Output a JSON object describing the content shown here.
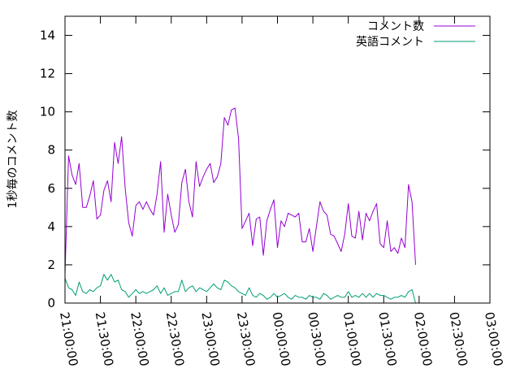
{
  "chart_data": {
    "type": "line",
    "title": "",
    "xlabel": "",
    "ylabel": "1秒毎のコメント数",
    "ylim": [
      0,
      15
    ],
    "xlim": [
      "21:00:00",
      "03:00:00"
    ],
    "x_start": "21:00:00",
    "x_step": "00:03:00",
    "yticks": [
      "0",
      "2",
      "4",
      "6",
      "8",
      "10",
      "12",
      "14"
    ],
    "xticks": [
      "21:00:00",
      "21:30:00",
      "22:00:00",
      "22:30:00",
      "23:00:00",
      "23:30:00",
      "00:00:00",
      "00:30:00",
      "01:00:00",
      "01:30:00",
      "02:00:00",
      "02:30:00",
      "03:00:00"
    ],
    "legend_position": "top-right",
    "grid": false,
    "series": [
      {
        "name": "コメント数",
        "color": "#9400d3",
        "values": [
          1.5,
          7.7,
          6.7,
          6.2,
          7.3,
          5.0,
          5.0,
          5.6,
          6.4,
          4.4,
          4.6,
          5.9,
          6.4,
          5.3,
          8.4,
          7.3,
          8.7,
          6.0,
          4.2,
          3.5,
          5.1,
          5.3,
          4.9,
          5.3,
          4.9,
          4.6,
          5.7,
          7.4,
          3.7,
          5.7,
          4.6,
          3.7,
          4.1,
          6.3,
          7.0,
          5.3,
          4.5,
          7.4,
          6.1,
          6.6,
          7.0,
          7.3,
          6.3,
          6.6,
          7.3,
          9.7,
          9.3,
          10.1,
          10.2,
          8.6,
          3.9,
          4.3,
          4.7,
          3.0,
          4.4,
          4.5,
          2.5,
          4.3,
          4.9,
          5.4,
          2.9,
          4.3,
          4.0,
          4.7,
          4.6,
          4.5,
          4.7,
          3.2,
          3.2,
          3.9,
          2.7,
          4.0,
          5.3,
          4.8,
          4.6,
          3.6,
          3.5,
          3.1,
          2.7,
          3.6,
          5.2,
          3.5,
          3.4,
          4.8,
          3.3,
          4.7,
          4.3,
          4.8,
          5.2,
          3.1,
          2.9,
          4.3,
          2.7,
          2.9,
          2.6,
          3.4,
          2.9,
          6.2,
          5.3,
          2.0
        ]
      },
      {
        "name": "英語コメント",
        "color": "#009e73",
        "values": [
          1.3,
          0.8,
          0.7,
          0.4,
          1.1,
          0.6,
          0.5,
          0.7,
          0.6,
          0.8,
          0.9,
          1.5,
          1.2,
          1.5,
          1.1,
          1.2,
          0.7,
          0.6,
          0.3,
          0.5,
          0.7,
          0.5,
          0.6,
          0.5,
          0.6,
          0.7,
          0.9,
          0.5,
          0.8,
          0.4,
          0.5,
          0.6,
          0.6,
          1.2,
          0.6,
          0.8,
          0.9,
          0.6,
          0.8,
          0.7,
          0.6,
          0.8,
          1.0,
          0.8,
          0.7,
          1.2,
          1.1,
          0.9,
          0.8,
          0.6,
          0.5,
          0.4,
          0.8,
          0.4,
          0.3,
          0.5,
          0.4,
          0.2,
          0.3,
          0.5,
          0.3,
          0.4,
          0.5,
          0.3,
          0.2,
          0.4,
          0.3,
          0.3,
          0.2,
          0.4,
          0.3,
          0.3,
          0.2,
          0.5,
          0.4,
          0.2,
          0.3,
          0.4,
          0.3,
          0.3,
          0.6,
          0.3,
          0.4,
          0.3,
          0.5,
          0.3,
          0.5,
          0.3,
          0.5,
          0.4,
          0.4,
          0.3,
          0.2,
          0.3,
          0.3,
          0.4,
          0.3,
          0.6,
          0.7,
          0.0
        ]
      }
    ]
  }
}
